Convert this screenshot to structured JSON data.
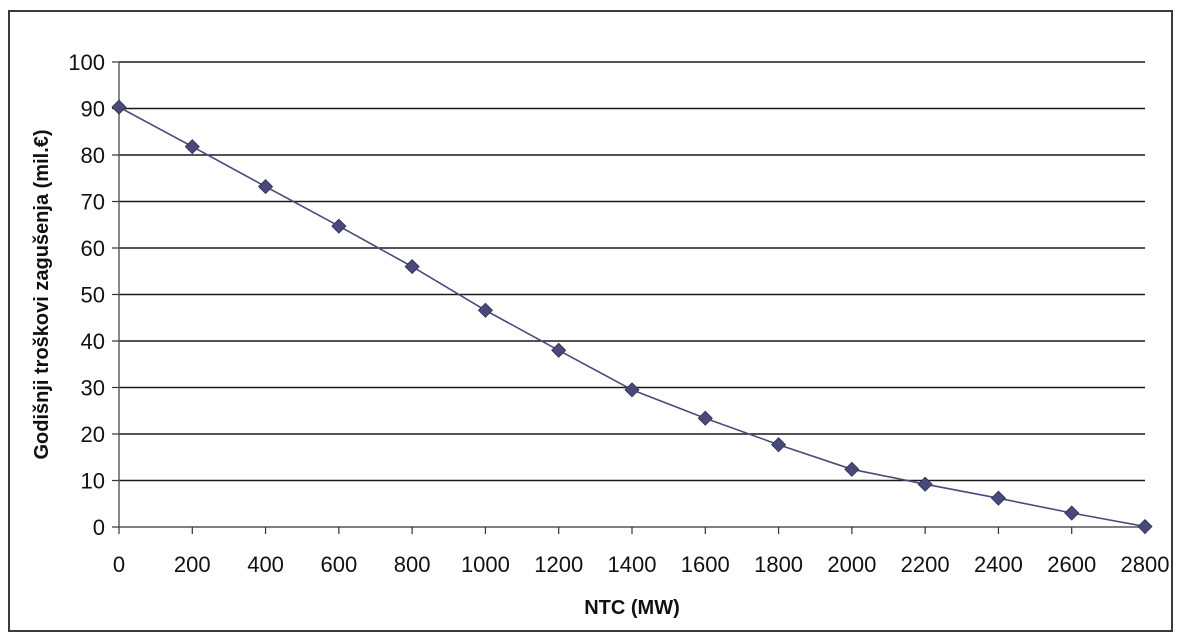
{
  "chart_data": {
    "type": "line",
    "title": "",
    "xlabel": "NTC (MW)",
    "ylabel": "Godišnji troškovi zagušenja (mil.€)",
    "xlim": [
      0,
      2800
    ],
    "ylim": [
      0,
      100
    ],
    "x_ticks": [
      0,
      200,
      400,
      600,
      800,
      1000,
      1200,
      1400,
      1600,
      1800,
      2000,
      2200,
      2400,
      2600,
      2800
    ],
    "y_ticks": [
      0,
      10,
      20,
      30,
      40,
      50,
      60,
      70,
      80,
      90,
      100
    ],
    "grid": "horizontal",
    "legend": "none",
    "series": [
      {
        "marker": "diamond",
        "color": "#4a4a7a",
        "x": [
          0,
          200,
          400,
          600,
          800,
          1000,
          1200,
          1400,
          1600,
          1800,
          2000,
          2200,
          2400,
          2600,
          2800
        ],
        "y": [
          90.3,
          81.8,
          73.2,
          64.7,
          56.0,
          46.6,
          38.0,
          29.5,
          23.4,
          17.7,
          12.4,
          9.2,
          6.2,
          3.0,
          0.1
        ]
      }
    ]
  }
}
